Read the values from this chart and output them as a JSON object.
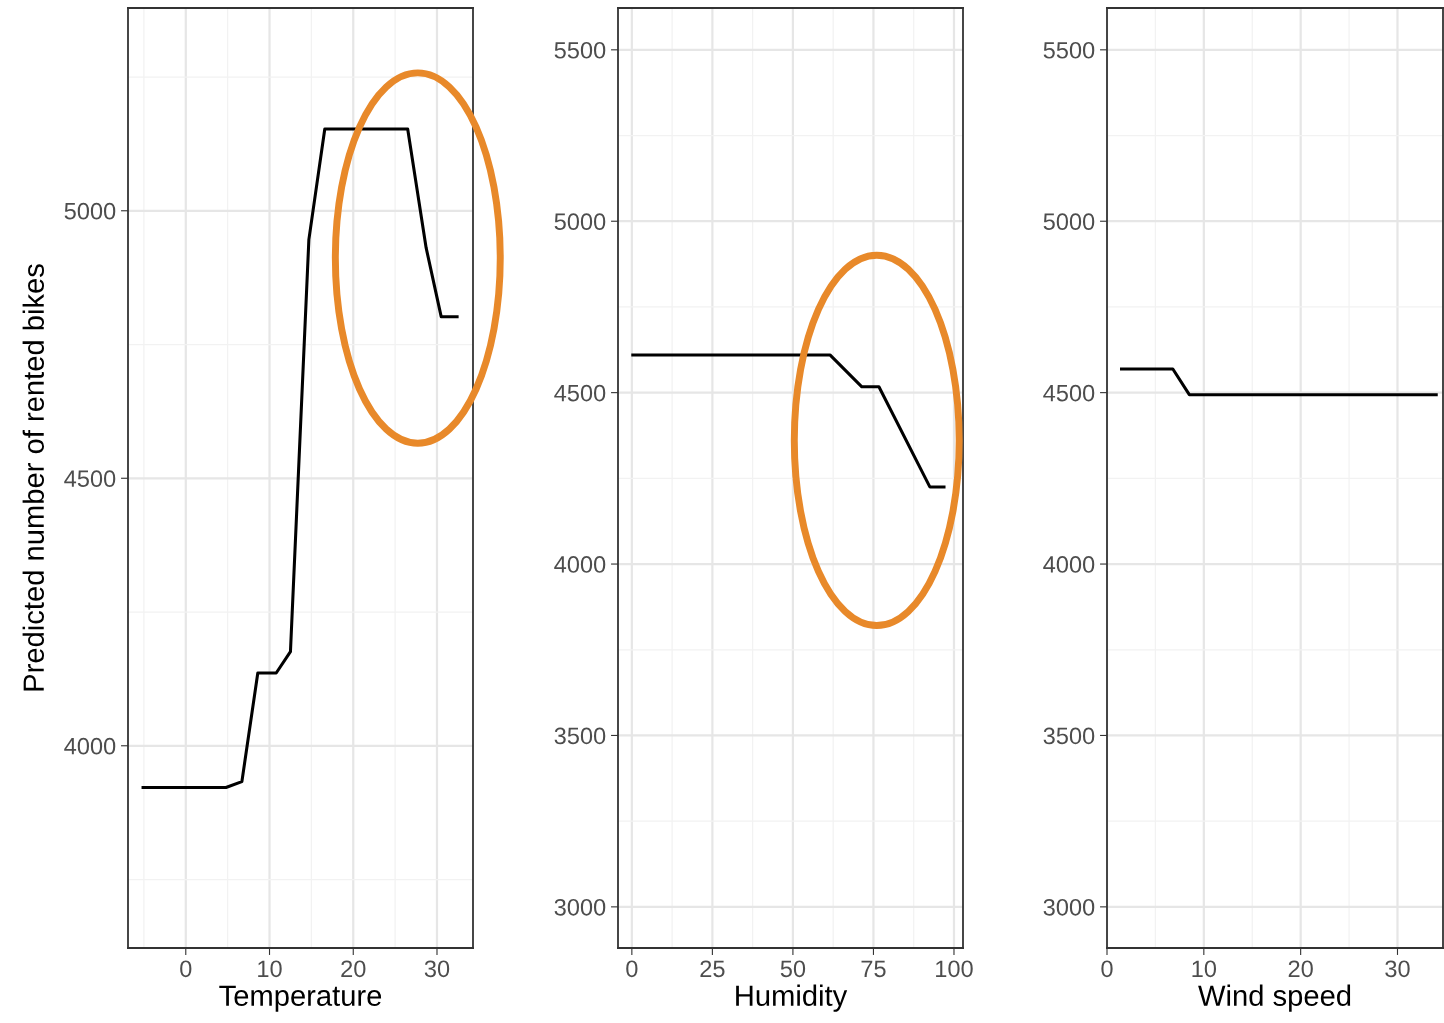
{
  "chart_data": [
    {
      "type": "line",
      "xlabel": "Temperature",
      "ylabel": "Predicted number of rented bikes",
      "color": "#000000",
      "grid": true,
      "xlim": [
        -6.9,
        34.3
      ],
      "xticks": [
        0,
        10,
        20,
        30
      ],
      "ylim": [
        3622,
        5379
      ],
      "yticks": [
        4000,
        4500,
        5000
      ],
      "x": [
        -5.1,
        4.8,
        6.7,
        8.6,
        10.8,
        12.5,
        14.7,
        16.6,
        26.5,
        28.7,
        30.5,
        32.4
      ],
      "values": [
        3922,
        3922,
        3933,
        4136,
        4136,
        4176,
        4946,
        5153,
        5153,
        4931,
        4802,
        4802
      ]
    },
    {
      "type": "line",
      "xlabel": "Humidity",
      "color": "#000000",
      "grid": true,
      "xlim": [
        -4.3,
        102.8
      ],
      "xticks": [
        0,
        25,
        50,
        75,
        100
      ],
      "ylim": [
        2880,
        5622
      ],
      "yticks": [
        3000,
        3500,
        4000,
        4500,
        5000,
        5500
      ],
      "x": [
        0.3,
        61.5,
        71.4,
        76.7,
        92.5,
        96.9
      ],
      "values": [
        4610,
        4610,
        4517,
        4517,
        4225,
        4225
      ]
    },
    {
      "type": "line",
      "xlabel": "Wind speed",
      "color": "#000000",
      "grid": true,
      "xlim": [
        0,
        34.7
      ],
      "xticks": [
        0,
        10,
        20,
        30
      ],
      "ylim": [
        2880,
        5622
      ],
      "yticks": [
        3000,
        3500,
        4000,
        4500,
        5000,
        5500
      ],
      "x": [
        1.5,
        6.8,
        8.5,
        34.0
      ],
      "values": [
        4569,
        4569,
        4494,
        4494
      ]
    }
  ]
}
